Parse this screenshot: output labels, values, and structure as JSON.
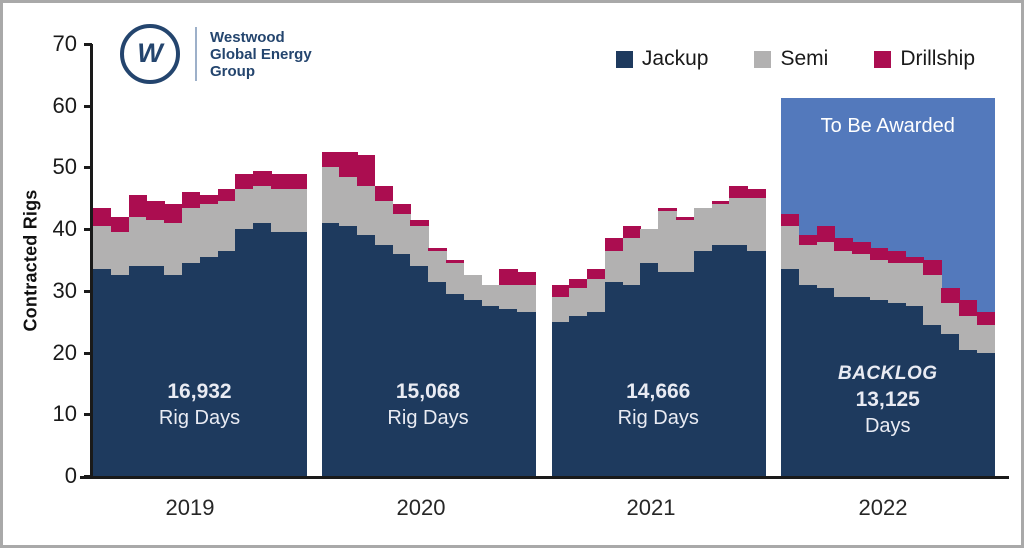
{
  "brand": {
    "monogram": "W",
    "line1": "Westwood",
    "line2": "Global Energy",
    "line3": "Group"
  },
  "legend": [
    {
      "label": "Jackup",
      "color": "#1e3a5e"
    },
    {
      "label": "Semi",
      "color": "#b2b1b1"
    },
    {
      "label": "Drillship",
      "color": "#ab0d50"
    }
  ],
  "chart_data": {
    "type": "bar",
    "stacked": true,
    "title": "",
    "xlabel": "",
    "ylabel": "Contracted Rigs",
    "ylim": [
      0,
      70
    ],
    "ytick_step": 10,
    "grid": false,
    "legend_position": "top-right",
    "series_names": [
      "Jackup",
      "Semi",
      "Drillship"
    ],
    "colors": {
      "jackup": "#1e3a5e",
      "semi": "#b2b1b1",
      "drillship": "#ab0d50",
      "to_be_awarded": "#5379bc"
    },
    "groups": [
      {
        "year": "2019",
        "jackup": [
          33.5,
          32.5,
          34,
          34,
          32.5,
          34.5,
          35.5,
          36.5,
          40,
          41,
          39.5,
          39.5
        ],
        "semi": [
          7,
          7,
          8,
          7.5,
          8.5,
          9,
          8.5,
          8,
          6.5,
          6,
          7,
          7
        ],
        "drillship": [
          3,
          2.5,
          3.5,
          3,
          3,
          2.5,
          1.5,
          2,
          2.5,
          2.5,
          2.5,
          2.5
        ],
        "annotation": {
          "lines": [
            {
              "text": "16,932",
              "style": "bold"
            },
            {
              "text": "Rig Days",
              "style": "reg"
            }
          ]
        }
      },
      {
        "year": "2020",
        "jackup": [
          41,
          40.5,
          39,
          37.5,
          36,
          34,
          31.5,
          29.5,
          28.5,
          27.5,
          27,
          26.5
        ],
        "semi": [
          9,
          8,
          8,
          7,
          6.5,
          6.5,
          5,
          5,
          4,
          3.5,
          4,
          4.5
        ],
        "drillship": [
          2.5,
          4,
          5,
          2.5,
          1.5,
          1,
          0.5,
          0.5,
          0,
          0,
          2.5,
          2
        ],
        "annotation": {
          "lines": [
            {
              "text": "15,068",
              "style": "bold"
            },
            {
              "text": "Rig Days",
              "style": "reg"
            }
          ]
        }
      },
      {
        "year": "2021",
        "jackup": [
          25,
          26,
          26.5,
          31.5,
          31,
          34.5,
          33,
          33,
          36.5,
          37.5,
          37.5,
          36.5
        ],
        "semi": [
          4,
          4.5,
          5.5,
          5,
          7.5,
          5.5,
          10,
          8.5,
          7,
          6.5,
          7.5,
          8.5
        ],
        "drillship": [
          2,
          1.5,
          1.5,
          2,
          2,
          0,
          0.5,
          0.5,
          0,
          0.5,
          2,
          1.5
        ],
        "annotation": {
          "lines": [
            {
              "text": "14,666",
              "style": "bold"
            },
            {
              "text": "Rig Days",
              "style": "reg"
            }
          ]
        }
      },
      {
        "year": "2022",
        "jackup": [
          33.5,
          31,
          30.5,
          29,
          29,
          28.5,
          28,
          27.5,
          24.5,
          23,
          20.5,
          20
        ],
        "semi": [
          7,
          6.5,
          7.5,
          7.5,
          7,
          6.5,
          6.5,
          7,
          8,
          5,
          5.5,
          4.5
        ],
        "drillship": [
          2,
          1.5,
          2.5,
          2,
          2,
          2,
          2,
          1,
          2.5,
          2.5,
          2.5,
          2
        ],
        "annotation": {
          "lines": [
            {
              "text": "BACKLOG",
              "style": "bolditalic"
            },
            {
              "text": "13,125",
              "style": "bold"
            },
            {
              "text": "Days",
              "style": "reg"
            }
          ]
        },
        "to_be_awarded": {
          "label": "To Be Awarded",
          "top_value": 61.3
        }
      }
    ]
  }
}
